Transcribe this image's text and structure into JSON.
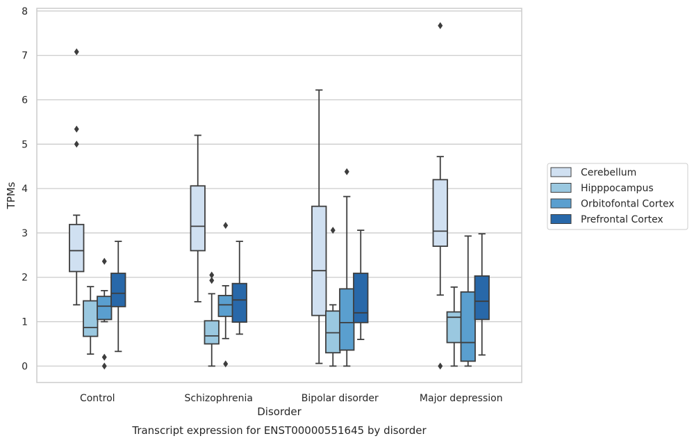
{
  "chart_data": {
    "type": "box",
    "title": "Transcript expression for ENST00000551645 by disorder",
    "xlabel": "Disorder",
    "ylabel": "TPMs",
    "ylim": [
      -0.37,
      8.06
    ],
    "yticks": [
      "0",
      "1",
      "2",
      "3",
      "4",
      "5",
      "6",
      "7",
      "8"
    ],
    "grid": "horizontal",
    "legend_position": "right",
    "categories": [
      "Control",
      "Schizophrenia",
      "Bipolar disorder",
      "Major depression"
    ],
    "series": [
      {
        "name": "Cerebellum",
        "color": "#d0e0f1",
        "boxes": [
          {
            "whislo": 1.38,
            "q1": 2.13,
            "med": 2.6,
            "q3": 3.19,
            "whishi": 3.4,
            "fliers": [
              5.0,
              5.34,
              7.08
            ]
          },
          {
            "whislo": 1.45,
            "q1": 2.6,
            "med": 3.15,
            "q3": 4.06,
            "whishi": 5.2,
            "fliers": []
          },
          {
            "whislo": 0.06,
            "q1": 1.14,
            "med": 2.15,
            "q3": 3.6,
            "whishi": 6.22,
            "fliers": []
          },
          {
            "whislo": 1.6,
            "q1": 2.7,
            "med": 3.04,
            "q3": 4.2,
            "whishi": 4.72,
            "fliers": [
              0.0,
              7.67
            ]
          }
        ]
      },
      {
        "name": "Hipppocampus",
        "color": "#9ac8e0",
        "boxes": [
          {
            "whislo": 0.27,
            "q1": 0.67,
            "med": 0.87,
            "q3": 1.47,
            "whishi": 1.79,
            "fliers": []
          },
          {
            "whislo": 0.0,
            "q1": 0.5,
            "med": 0.68,
            "q3": 1.02,
            "whishi": 1.63,
            "fliers": [
              1.93,
              2.05
            ]
          },
          {
            "whislo": 0.0,
            "q1": 0.3,
            "med": 0.75,
            "q3": 1.24,
            "whishi": 1.38,
            "fliers": [
              3.06
            ]
          },
          {
            "whislo": 0.0,
            "q1": 0.53,
            "med": 1.1,
            "q3": 1.22,
            "whishi": 1.78,
            "fliers": []
          }
        ]
      },
      {
        "name": "Orbitofontal Cortex",
        "color": "#5a9fcf",
        "boxes": [
          {
            "whislo": 1.0,
            "q1": 1.05,
            "med": 1.35,
            "q3": 1.57,
            "whishi": 1.7,
            "fliers": [
              0.0,
              0.2,
              2.36
            ]
          },
          {
            "whislo": 0.62,
            "q1": 1.12,
            "med": 1.38,
            "q3": 1.59,
            "whishi": 1.81,
            "fliers": [
              0.05,
              3.17
            ]
          },
          {
            "whislo": 0.0,
            "q1": 0.36,
            "med": 0.98,
            "q3": 1.74,
            "whishi": 3.82,
            "fliers": [
              4.38
            ]
          },
          {
            "whislo": 0.0,
            "q1": 0.11,
            "med": 0.53,
            "q3": 1.67,
            "whishi": 2.93,
            "fliers": []
          }
        ]
      },
      {
        "name": "Prefrontal Cortex",
        "color": "#2868a9",
        "boxes": [
          {
            "whislo": 0.33,
            "q1": 1.34,
            "med": 1.64,
            "q3": 2.09,
            "whishi": 2.81,
            "fliers": []
          },
          {
            "whislo": 0.72,
            "q1": 0.99,
            "med": 1.49,
            "q3": 1.86,
            "whishi": 2.81,
            "fliers": []
          },
          {
            "whislo": 0.6,
            "q1": 0.98,
            "med": 1.2,
            "q3": 2.09,
            "whishi": 3.06,
            "fliers": []
          },
          {
            "whislo": 0.25,
            "q1": 1.05,
            "med": 1.46,
            "q3": 2.03,
            "whishi": 2.98,
            "fliers": []
          }
        ]
      }
    ]
  }
}
